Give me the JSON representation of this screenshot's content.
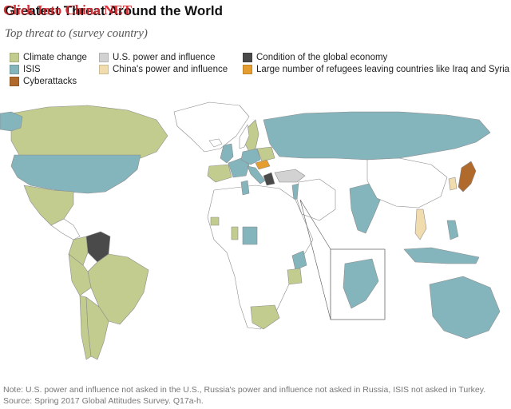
{
  "header": {
    "title": "Greatest Threat Around the World",
    "watermark": "Click Into China NET",
    "subtitle": "Top threat to (survey country)"
  },
  "legend": {
    "items": [
      {
        "label": "Climate change",
        "color": "#c2cc8e"
      },
      {
        "label": "U.S. power and influence",
        "color": "#d2d2d2"
      },
      {
        "label": "Condition of the global economy",
        "color": "#4a4a4a"
      },
      {
        "label": "ISIS",
        "color": "#84b5bd"
      },
      {
        "label": "China's power and influence",
        "color": "#f1dcae"
      },
      {
        "label": "Large number of refugees leaving countries like Iraq and Syria",
        "color": "#e49d2e"
      },
      {
        "label": "Cyberattacks",
        "color": "#b06a2b"
      }
    ]
  },
  "footer": {
    "note": "Note: U.S. power and influence not asked in the U.S., Russia's power and influence not asked in Russia, ISIS not asked in Turkey.",
    "source": "Source: Spring 2017 Global Attitudes Survey. Q17a-h."
  },
  "map_colors": {
    "unsurveyed": "#ffffff",
    "border": "#8c8c8c"
  }
}
